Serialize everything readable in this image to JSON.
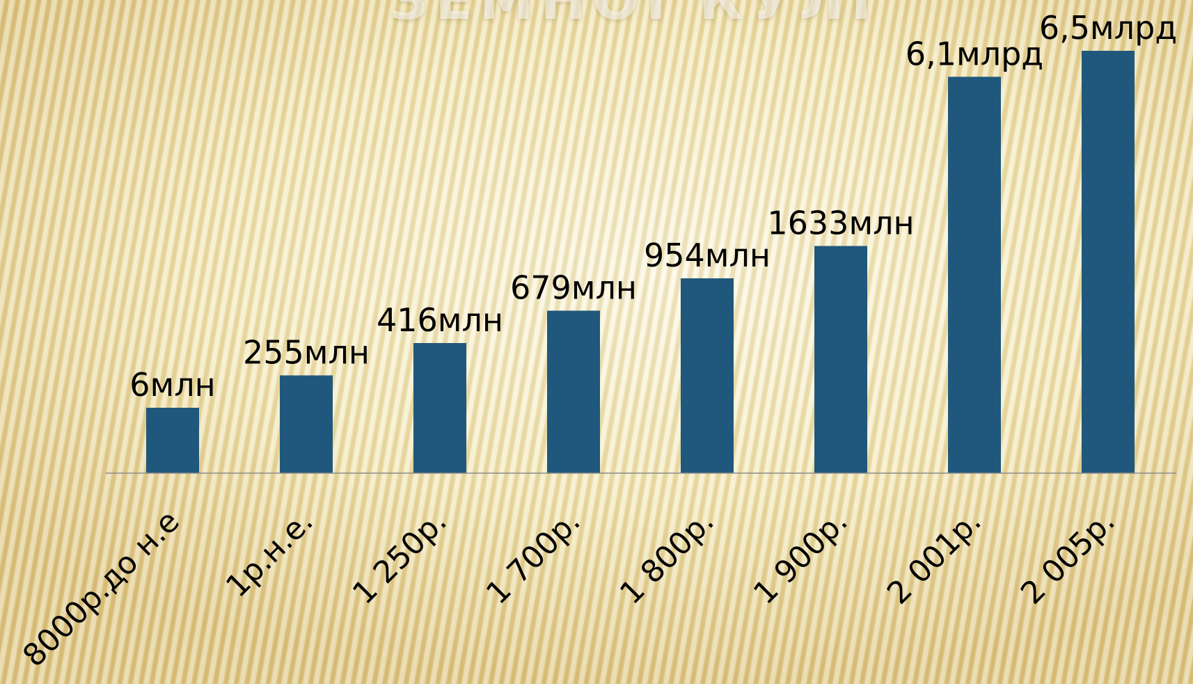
{
  "slide": {
    "title": "ЗЕМНОЇ КУЛІ"
  },
  "colors": {
    "bar": "#1f587c",
    "axis": "#8c8c8c",
    "label": "#000000"
  },
  "chart_data": {
    "type": "bar",
    "categories": [
      "8000р.до н.е",
      "1р.н.е.",
      "1 250р.",
      "1 700р.",
      "1 800р.",
      "1 900р.",
      "2 001р.",
      "2 005р."
    ],
    "values": [
      6,
      255,
      416,
      679,
      954,
      1633,
      6100,
      6500
    ],
    "data_labels": [
      "6млн",
      "255млн",
      "416млн",
      "679млн",
      "954млн",
      "1633млн",
      "6,1млрд",
      "6,5млрд"
    ],
    "title": "",
    "xlabel": "",
    "ylabel": "",
    "grid": false,
    "legend": "none"
  }
}
